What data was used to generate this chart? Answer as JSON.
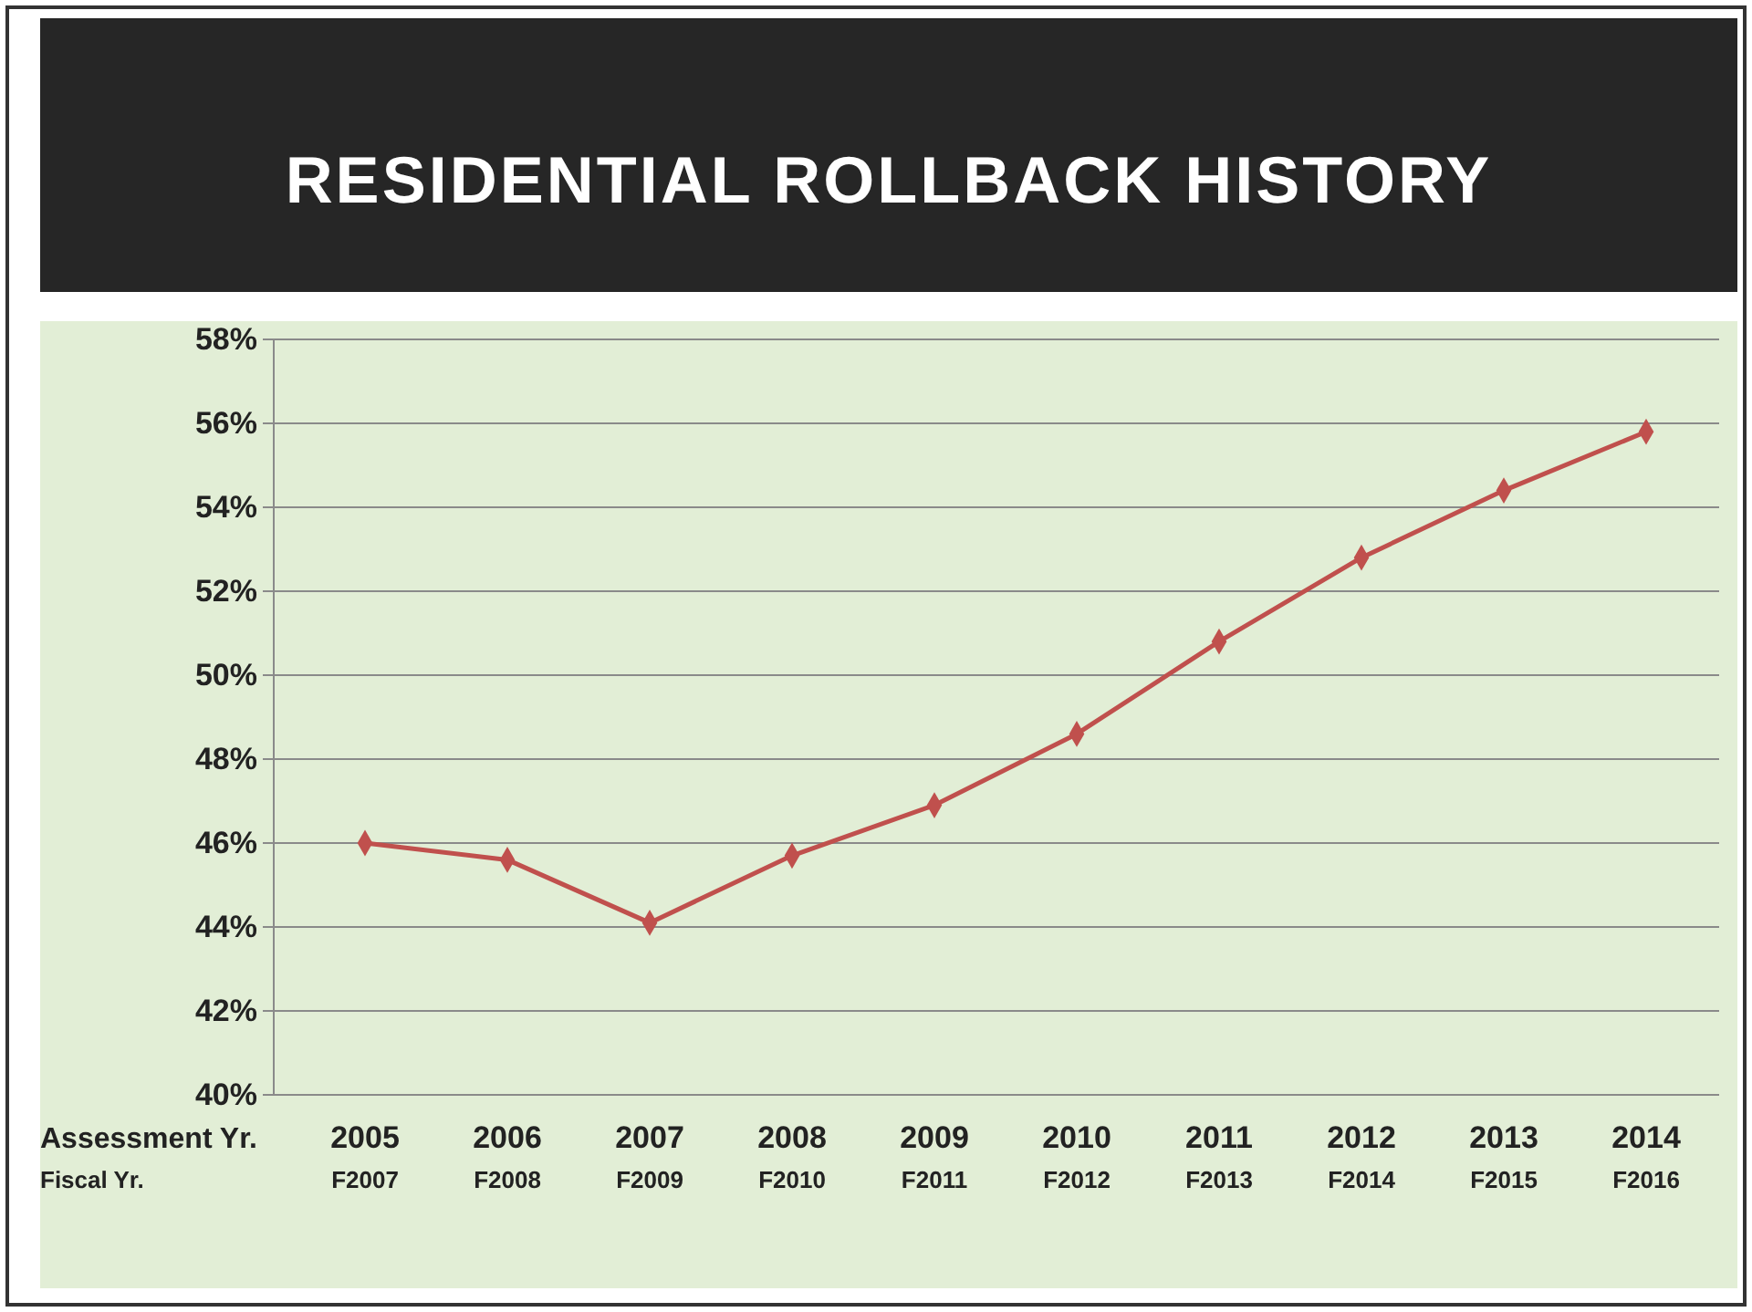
{
  "chart_data": {
    "type": "line",
    "title": "RESIDENTIAL ROLLBACK HISTORY",
    "categories": [
      "2005\nF2007",
      "2006\nF2008",
      "2007\nF2009",
      "2008\nF2010",
      "2009\nF2011",
      "2010\nF2012",
      "2011\nF2013",
      "2012\nF2014",
      "2013\nF2015",
      "2014\nF2016"
    ],
    "series": [
      {
        "color": "#c0504d",
        "values": [
          46.0,
          45.6,
          44.1,
          45.7,
          46.9,
          48.6,
          50.8,
          52.8,
          54.4,
          55.8
        ]
      }
    ],
    "ylim": [
      40,
      58
    ],
    "yticks": [
      {
        "value": 40,
        "label": "40%"
      },
      {
        "value": 42,
        "label": "42%"
      },
      {
        "value": 44,
        "label": "44%"
      },
      {
        "value": 46,
        "label": "46%"
      },
      {
        "value": 48,
        "label": "48%"
      },
      {
        "value": 50,
        "label": "50%"
      },
      {
        "value": 52,
        "label": "52%"
      },
      {
        "value": 54,
        "label": "54%"
      },
      {
        "value": 56,
        "label": "56%"
      },
      {
        "value": 58,
        "label": "58%"
      }
    ],
    "grid": "y",
    "marker": "diamond",
    "line_style": "solid",
    "annotations": [
      "Assessment Yr.",
      "Fiscal Yr."
    ]
  }
}
